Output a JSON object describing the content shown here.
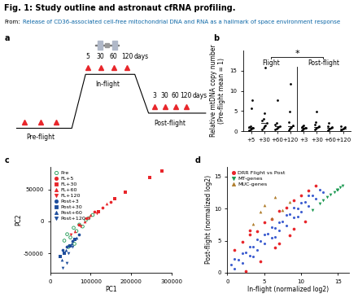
{
  "header": {
    "title": "Fig. 1: Study outline and astronaut cfRNA profiling.",
    "source_prefix": "From:",
    "source": "Release of CD36-associated cell-free mitochondrial DNA and RNA as a hallmark of space environment response"
  },
  "diagram": {
    "panel": "a",
    "color": "#e8262b",
    "pre_flight": {
      "label": "Pre-flight",
      "samples": 3
    },
    "in_flight": {
      "label": "In-flight",
      "days": [
        5,
        30,
        60,
        120
      ],
      "unit": "days"
    },
    "post_flight": {
      "label": "Post-flight",
      "days": [
        3,
        30,
        60,
        120
      ],
      "unit": "days"
    }
  },
  "chart_data": [
    {
      "panel": "b",
      "type": "strip",
      "ylabel": "Relative mtDNA copy number\n(Pre-flight mean = 1)",
      "categories": [
        "+5",
        "+30",
        "+60",
        "+120",
        "+3",
        "+30",
        "+60",
        "+120"
      ],
      "groups": [
        {
          "name": "Flight",
          "count": 4
        },
        {
          "name": "Post-flight",
          "count": 4
        }
      ],
      "values": [
        [
          0.3,
          0.5,
          0.6,
          0.8,
          0.9,
          1.1,
          1.3,
          5.6,
          7.6
        ],
        [
          0.5,
          0.8,
          1.2,
          1.5,
          2.0,
          2.6,
          3.0,
          4.5,
          15.8
        ],
        [
          0.4,
          0.6,
          0.8,
          1.0,
          1.3,
          1.6,
          2.0,
          7.8
        ],
        [
          0.3,
          0.6,
          0.8,
          1.1,
          1.4,
          2.2,
          4.8,
          11.8
        ],
        [
          0.3,
          0.5,
          0.7,
          0.8,
          0.9,
          1.0,
          1.2,
          1.4
        ],
        [
          0.4,
          0.6,
          0.8,
          1.0,
          1.2,
          1.6,
          2.2,
          4.9
        ],
        [
          0.3,
          0.5,
          0.7,
          0.9,
          1.1,
          1.3,
          2.0
        ],
        [
          0.3,
          0.5,
          0.6,
          0.8,
          1.0,
          1.2
        ]
      ],
      "medians": [
        0.9,
        2.0,
        1.15,
        1.25,
        0.85,
        1.1,
        0.9,
        0.7
      ],
      "significance": "*",
      "color": "#000000",
      "ylim": [
        0,
        20
      ],
      "yticks": [
        0,
        5,
        10,
        15
      ]
    },
    {
      "panel": "c",
      "type": "scatter",
      "xlabel": "PC1",
      "ylabel": "PC2",
      "xlim": [
        0,
        300000
      ],
      "xticks": [
        0,
        100000,
        200000,
        300000
      ],
      "ylim": [
        -80000,
        85000
      ],
      "yticks": [
        -50000,
        0,
        50000
      ],
      "legend": "upper left",
      "series": [
        {
          "name": "Pre",
          "color": "#1a9850",
          "marker": "open_circle",
          "x": [
            35000,
            42000,
            50000,
            58000,
            65000,
            72000,
            80000,
            88000,
            95000,
            60000,
            45000,
            105000
          ],
          "values": [
            -30000,
            -20000,
            -25000,
            -10000,
            -15000,
            -5000,
            -8000,
            2000,
            5000,
            -35000,
            -40000,
            10000
          ]
        },
        {
          "name": "FL+5",
          "color": "#e8262b",
          "marker": "circle",
          "x": [
            70000,
            90000,
            110000,
            130000,
            150000
          ],
          "values": [
            -5000,
            5000,
            15000,
            22000,
            30000
          ]
        },
        {
          "name": "FL+30",
          "color": "#e8262b",
          "marker": "square",
          "x": [
            120000,
            160000,
            185000,
            245000,
            275000
          ],
          "values": [
            15000,
            35000,
            45000,
            68000,
            78000
          ]
        },
        {
          "name": "FL+60",
          "color": "#e8262b",
          "marker": "triangle_up",
          "x": [
            60000,
            85000,
            100000,
            140000
          ],
          "values": [
            -15000,
            0,
            10000,
            28000
          ]
        },
        {
          "name": "FL+120",
          "color": "#e8262b",
          "marker": "triangle_down",
          "x": [
            50000,
            75000,
            95000,
            115000
          ],
          "values": [
            -20000,
            -8000,
            5000,
            12000
          ]
        },
        {
          "name": "Post+3",
          "color": "#1f4e9c",
          "marker": "circle",
          "x": [
            30000,
            40000,
            55000,
            70000
          ],
          "values": [
            -45000,
            -40000,
            -30000,
            -20000
          ]
        },
        {
          "name": "Post+30",
          "color": "#1f4e9c",
          "marker": "square",
          "x": [
            25000,
            35000,
            48000,
            60000
          ],
          "values": [
            -55000,
            -50000,
            -38000,
            -28000
          ]
        },
        {
          "name": "Post+60",
          "color": "#1f4e9c",
          "marker": "triangle_up",
          "x": [
            28000,
            38000,
            52000,
            65000
          ],
          "values": [
            -60000,
            -45000,
            -35000,
            -25000
          ]
        },
        {
          "name": "Post+120",
          "color": "#1f4e9c",
          "marker": "triangle_down",
          "x": [
            30000,
            40000,
            45000,
            55000
          ],
          "values": [
            -72000,
            -65000,
            -50000,
            -40000
          ]
        }
      ]
    },
    {
      "panel": "d",
      "type": "scatter",
      "xlabel": "In-flight (normalized log2)",
      "ylabel": "Post-flight (normalized log2)",
      "xlim": [
        0,
        16.5
      ],
      "ylim": [
        0,
        16.5
      ],
      "xticks": [
        0,
        5,
        10,
        15
      ],
      "yticks": [
        0,
        5,
        10,
        15
      ],
      "legend": "upper left",
      "series": [
        {
          "color": "#3f5fd0",
          "marker": "circle",
          "x": [
            0.5,
            1,
            1.5,
            2,
            2.5,
            3,
            3.5,
            4,
            4.5,
            5,
            5.5,
            6,
            6.5,
            7,
            7.5,
            8,
            8.5,
            9,
            9.5,
            10,
            10.5,
            11,
            11.5,
            12,
            12.5,
            13,
            2,
            3,
            4,
            5,
            6,
            7,
            8,
            9,
            10,
            11,
            1,
            3.5,
            6.5,
            9.5
          ],
          "values": [
            1.2,
            0.6,
            2.0,
            1.5,
            3.2,
            2.6,
            4.1,
            3.5,
            5.0,
            4.6,
            6.1,
            5.5,
            7.0,
            6.6,
            8.0,
            7.4,
            9.1,
            8.6,
            10.0,
            9.5,
            11.0,
            10.4,
            12.1,
            11.6,
            12.9,
            12.5,
            3.0,
            4.0,
            5.2,
            6.0,
            7.1,
            7.9,
            9.0,
            10.1,
            10.9,
            12.0,
            2.1,
            2.5,
            5.6,
            8.7
          ]
        },
        {
          "name": "DRR Flight vs Post",
          "color": "#e8262b",
          "marker": "circle",
          "x": [
            1,
            2,
            3,
            4,
            5,
            6,
            7,
            8,
            9,
            10,
            11,
            12,
            2.5,
            4.5,
            6.5,
            8.5,
            10.5,
            3,
            7,
            9
          ],
          "values": [
            3.5,
            4.8,
            5.9,
            6.5,
            7.9,
            8.4,
            9.6,
            10.2,
            11.3,
            12.0,
            12.8,
            13.6,
            0.3,
            1.8,
            3.9,
            5.8,
            8.0,
            6.6,
            4.5,
            6.8
          ]
        },
        {
          "name": "MT-genes",
          "color": "#1a9850",
          "marker": "triangle_down",
          "x": [
            11.5,
            12.5,
            13,
            13.5,
            14,
            14.5,
            15,
            15.3,
            15.6,
            14.8
          ],
          "values": [
            9.8,
            10.8,
            11.3,
            11.8,
            12.2,
            12.6,
            13.0,
            13.3,
            13.6,
            12.9
          ]
        },
        {
          "name": "MUC-genes",
          "color": "#b07d2c",
          "marker": "triangle_up",
          "x": [
            3.5,
            4.5,
            5.0,
            6.0,
            6.5,
            7.5,
            8.5
          ],
          "values": [
            7.6,
            9.5,
            10.5,
            8.5,
            11.8,
            9.8,
            11.0
          ]
        }
      ]
    }
  ]
}
